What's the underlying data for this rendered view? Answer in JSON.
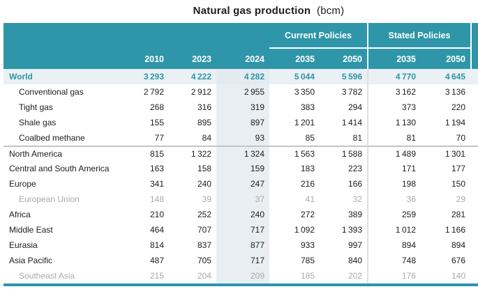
{
  "title": {
    "main": "Natural gas production",
    "unit": "(bcm)"
  },
  "colors": {
    "header_teal": "#2e96a8",
    "world_row_bg": "#ebf0f4",
    "col_2024_bg": "#e9eef2",
    "muted_text": "#a9a9a9",
    "body_text": "#1c1c1c",
    "group_separator_line": "#c4c4c4"
  },
  "header": {
    "group_current": "Current Policies",
    "group_stated": "Stated Policies",
    "years": [
      "2010",
      "2023",
      "2024",
      "2035",
      "2050",
      "2035",
      "2050"
    ]
  },
  "chart_data": {
    "type": "table",
    "title": "Natural gas production",
    "unit": "bcm",
    "column_groups": [
      {
        "label": "",
        "columns": [
          "2010",
          "2023",
          "2024"
        ]
      },
      {
        "label": "Current Policies",
        "columns": [
          "2035",
          "2050"
        ]
      },
      {
        "label": "Stated Policies",
        "columns": [
          "2035",
          "2050"
        ]
      }
    ],
    "columns": [
      "2010",
      "2023",
      "2024",
      "Current Policies 2035",
      "Current Policies 2050",
      "Stated Policies 2035",
      "Stated Policies 2050"
    ],
    "highlighted_column": "2024",
    "rows": [
      {
        "label": "World",
        "style": "world",
        "values": [
          3293,
          4222,
          4282,
          5044,
          5596,
          4770,
          4645
        ]
      },
      {
        "label": "Conventional gas",
        "style": "sub",
        "values": [
          2792,
          2912,
          2955,
          3350,
          3782,
          3162,
          3136
        ]
      },
      {
        "label": "Tight gas",
        "style": "sub",
        "values": [
          268,
          316,
          319,
          383,
          294,
          373,
          220
        ]
      },
      {
        "label": "Shale gas",
        "style": "sub",
        "values": [
          155,
          895,
          897,
          1201,
          1414,
          1130,
          1194
        ]
      },
      {
        "label": "Coalbed methane",
        "style": "sub",
        "values": [
          77,
          84,
          93,
          85,
          81,
          81,
          70
        ]
      },
      {
        "label": "North America",
        "style": "region",
        "separator_above": true,
        "values": [
          815,
          1322,
          1324,
          1563,
          1588,
          1489,
          1301
        ]
      },
      {
        "label": "Central and South America",
        "style": "region",
        "values": [
          163,
          158,
          159,
          183,
          223,
          171,
          177
        ]
      },
      {
        "label": "Europe",
        "style": "region",
        "values": [
          341,
          240,
          247,
          216,
          166,
          198,
          150
        ]
      },
      {
        "label": "European Union",
        "style": "muted",
        "values": [
          148,
          39,
          37,
          41,
          32,
          36,
          29
        ]
      },
      {
        "label": "Africa",
        "style": "region",
        "values": [
          210,
          252,
          240,
          272,
          389,
          259,
          281
        ]
      },
      {
        "label": "Middle East",
        "style": "region",
        "values": [
          464,
          707,
          717,
          1092,
          1393,
          1012,
          1166
        ]
      },
      {
        "label": "Eurasia",
        "style": "region",
        "values": [
          814,
          837,
          877,
          933,
          997,
          894,
          894
        ]
      },
      {
        "label": "Asia Pacific",
        "style": "region",
        "values": [
          487,
          705,
          717,
          785,
          840,
          748,
          676
        ]
      },
      {
        "label": "Southeast Asia",
        "style": "muted",
        "values": [
          215,
          204,
          209,
          185,
          202,
          176,
          140
        ]
      }
    ]
  }
}
